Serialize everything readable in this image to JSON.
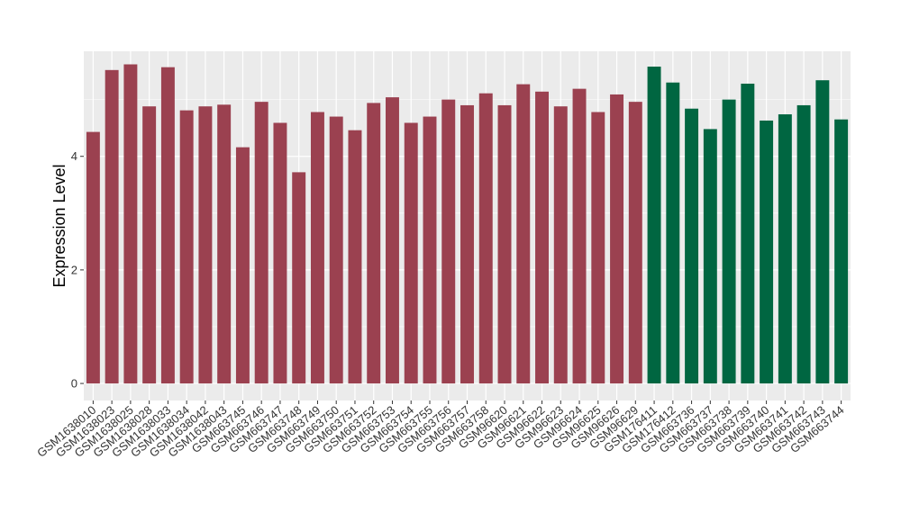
{
  "chart_data": {
    "type": "bar",
    "title": "",
    "xlabel": "",
    "ylabel": "Expression Level",
    "ylim": [
      -0.3,
      5.85
    ],
    "yticks": [
      0,
      2,
      4
    ],
    "ytick_labels": [
      "0",
      "2",
      "4"
    ],
    "grid": true,
    "legend": "none",
    "background_color": "#ebebeb",
    "gridline_color": "#ffffff",
    "categories": [
      "GSM1638010",
      "GSM1638023",
      "GSM1638025",
      "GSM1638028",
      "GSM1638033",
      "GSM1638034",
      "GSM1638042",
      "GSM1638043",
      "GSM663745",
      "GSM663746",
      "GSM663747",
      "GSM663748",
      "GSM663749",
      "GSM663750",
      "GSM663751",
      "GSM663752",
      "GSM663753",
      "GSM663754",
      "GSM663755",
      "GSM663756",
      "GSM663757",
      "GSM663758",
      "GSM96620",
      "GSM96621",
      "GSM96622",
      "GSM96623",
      "GSM96624",
      "GSM96625",
      "GSM96626",
      "GSM96629",
      "GSM176411",
      "GSM176412",
      "GSM663736",
      "GSM663737",
      "GSM663738",
      "GSM663739",
      "GSM663740",
      "GSM663741",
      "GSM663742",
      "GSM663743",
      "GSM663744"
    ],
    "values": [
      4.43,
      5.52,
      5.62,
      4.88,
      5.57,
      4.81,
      4.88,
      4.91,
      4.16,
      4.96,
      4.59,
      3.72,
      4.78,
      4.7,
      4.46,
      4.94,
      5.04,
      4.59,
      4.7,
      5.0,
      4.9,
      5.11,
      4.9,
      5.27,
      5.14,
      4.88,
      5.19,
      4.78,
      5.09,
      4.96,
      5.58,
      5.3,
      4.84,
      4.48,
      5.0,
      5.28,
      4.63,
      4.74,
      4.9,
      5.34,
      4.65
    ],
    "group_colors": [
      "#9b4150",
      "#006641"
    ],
    "group_index": [
      0,
      0,
      0,
      0,
      0,
      0,
      0,
      0,
      0,
      0,
      0,
      0,
      0,
      0,
      0,
      0,
      0,
      0,
      0,
      0,
      0,
      0,
      0,
      0,
      0,
      0,
      0,
      0,
      0,
      0,
      1,
      1,
      1,
      1,
      1,
      1,
      1,
      1,
      1,
      1,
      1
    ]
  }
}
